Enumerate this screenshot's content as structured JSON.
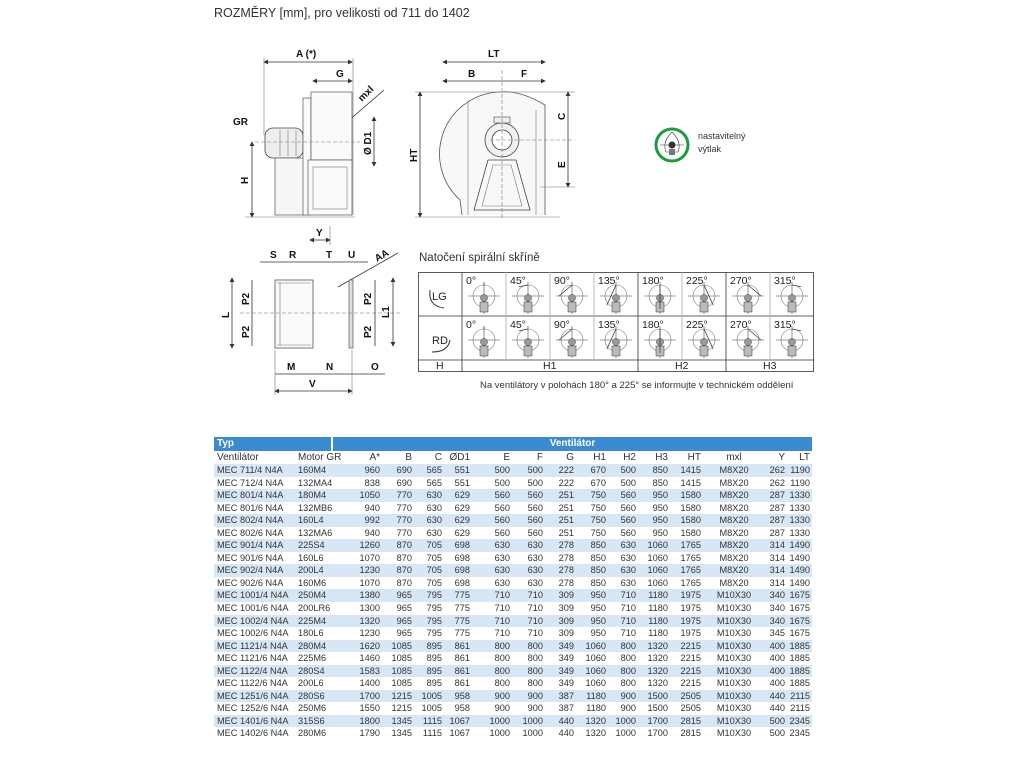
{
  "title": "ROZMĚRY [mm], pro velikosti od 711 do 1402",
  "drawing_labels": {
    "a": "A (*)",
    "g": "G",
    "mxl": "mxl",
    "gr": "GR",
    "d1": "Ø D1",
    "h": "H",
    "lt": "LT",
    "b": "B",
    "f": "F",
    "ht": "HT",
    "c": "C",
    "e": "E",
    "y": "Y",
    "s": "S",
    "r": "R",
    "t": "T",
    "u": "U",
    "aa": "AA",
    "l": "L",
    "p2": "P2",
    "l1": "L1",
    "m": "M",
    "n": "N",
    "o": "O",
    "v": "V"
  },
  "adjustable_outlet": {
    "line1": "nastavitelný",
    "line2": "výtlak",
    "icon": "adjustable-outlet-icon",
    "color": "#1f9a3e"
  },
  "rotation": {
    "title": "Natočení spirální skříně",
    "rows": [
      {
        "label": "LG",
        "angles": [
          "0°",
          "45°",
          "90°",
          "135°",
          "180°",
          "225°",
          "270°",
          "315°"
        ]
      },
      {
        "label": "RD",
        "angles": [
          "0°",
          "45°",
          "90°",
          "135°",
          "180°",
          "225°",
          "270°",
          "315°"
        ]
      }
    ],
    "footer": {
      "label": "H",
      "groups": [
        "H1",
        "H2",
        "H3"
      ]
    },
    "note": "Na ventilátory v polohách 180° a 225° se informujte v technickém oddělení"
  },
  "table": {
    "group_headers": [
      "Typ",
      "Ventilátor"
    ],
    "header_color": "#3a8bd0",
    "stripe_color": "#d8e7f5",
    "columns": [
      "Ventilátor",
      "Motor GR",
      "A*",
      "B",
      "C",
      "ØD1",
      "E",
      "F",
      "G",
      "H1",
      "H2",
      "H3",
      "HT",
      "mxl",
      "Y",
      "LT"
    ],
    "rows": [
      [
        "MEC 711/4 N4A",
        "160M4",
        "960",
        "690",
        "565",
        "551",
        "500",
        "500",
        "222",
        "670",
        "500",
        "850",
        "1415",
        "M8X20",
        "262",
        "1190"
      ],
      [
        "MEC 712/4 N4A",
        "132MA4",
        "838",
        "690",
        "565",
        "551",
        "500",
        "500",
        "222",
        "670",
        "500",
        "850",
        "1415",
        "M8X20",
        "262",
        "1190"
      ],
      [
        "MEC 801/4 N4A",
        "180M4",
        "1050",
        "770",
        "630",
        "629",
        "560",
        "560",
        "251",
        "750",
        "560",
        "950",
        "1580",
        "M8X20",
        "287",
        "1330"
      ],
      [
        "MEC 801/6 N4A",
        "132MB6",
        "940",
        "770",
        "630",
        "629",
        "560",
        "560",
        "251",
        "750",
        "560",
        "950",
        "1580",
        "M8X20",
        "287",
        "1330"
      ],
      [
        "MEC 802/4 N4A",
        "160L4",
        "992",
        "770",
        "630",
        "629",
        "560",
        "560",
        "251",
        "750",
        "560",
        "950",
        "1580",
        "M8X20",
        "287",
        "1330"
      ],
      [
        "MEC 802/6 N4A",
        "132MA6",
        "940",
        "770",
        "630",
        "629",
        "560",
        "560",
        "251",
        "750",
        "560",
        "950",
        "1580",
        "M8X20",
        "287",
        "1330"
      ],
      [
        "MEC 901/4 N4A",
        "225S4",
        "1260",
        "870",
        "705",
        "698",
        "630",
        "630",
        "278",
        "850",
        "630",
        "1060",
        "1765",
        "M8X20",
        "314",
        "1490"
      ],
      [
        "MEC 901/6 N4A",
        "160L6",
        "1070",
        "870",
        "705",
        "698",
        "630",
        "630",
        "278",
        "850",
        "630",
        "1060",
        "1765",
        "M8X20",
        "314",
        "1490"
      ],
      [
        "MEC 902/4 N4A",
        "200L4",
        "1230",
        "870",
        "705",
        "698",
        "630",
        "630",
        "278",
        "850",
        "630",
        "1060",
        "1765",
        "M8X20",
        "314",
        "1490"
      ],
      [
        "MEC 902/6 N4A",
        "160M6",
        "1070",
        "870",
        "705",
        "698",
        "630",
        "630",
        "278",
        "850",
        "630",
        "1060",
        "1765",
        "M8X20",
        "314",
        "1490"
      ],
      [
        "MEC 1001/4 N4A",
        "250M4",
        "1380",
        "965",
        "795",
        "775",
        "710",
        "710",
        "309",
        "950",
        "710",
        "1180",
        "1975",
        "M10X30",
        "340",
        "1675"
      ],
      [
        "MEC 1001/6 N4A",
        "200LR6",
        "1300",
        "965",
        "795",
        "775",
        "710",
        "710",
        "309",
        "950",
        "710",
        "1180",
        "1975",
        "M10X30",
        "340",
        "1675"
      ],
      [
        "MEC 1002/4 N4A",
        "225M4",
        "1320",
        "965",
        "795",
        "775",
        "710",
        "710",
        "309",
        "950",
        "710",
        "1180",
        "1975",
        "M10X30",
        "340",
        "1675"
      ],
      [
        "MEC 1002/6 N4A",
        "180L6",
        "1230",
        "965",
        "795",
        "775",
        "710",
        "710",
        "309",
        "950",
        "710",
        "1180",
        "1975",
        "M10X30",
        "345",
        "1675"
      ],
      [
        "MEC 1121/4 N4A",
        "280M4",
        "1620",
        "1085",
        "895",
        "861",
        "800",
        "800",
        "349",
        "1060",
        "800",
        "1320",
        "2215",
        "M10X30",
        "400",
        "1885"
      ],
      [
        "MEC 1121/6 N4A",
        "225M6",
        "1460",
        "1085",
        "895",
        "861",
        "800",
        "800",
        "349",
        "1060",
        "800",
        "1320",
        "2215",
        "M10X30",
        "400",
        "1885"
      ],
      [
        "MEC 1122/4 N4A",
        "280S4",
        "1583",
        "1085",
        "895",
        "861",
        "800",
        "800",
        "349",
        "1060",
        "800",
        "1320",
        "2215",
        "M10X30",
        "400",
        "1885"
      ],
      [
        "MEC 1122/6 N4A",
        "200L6",
        "1400",
        "1085",
        "895",
        "861",
        "800",
        "800",
        "349",
        "1060",
        "800",
        "1320",
        "2215",
        "M10X30",
        "400",
        "1885"
      ],
      [
        "MEC 1251/6 N4A",
        "280S6",
        "1700",
        "1215",
        "1005",
        "958",
        "900",
        "900",
        "387",
        "1180",
        "900",
        "1500",
        "2505",
        "M10X30",
        "440",
        "2115"
      ],
      [
        "MEC 1252/6 N4A",
        "250M6",
        "1550",
        "1215",
        "1005",
        "958",
        "900",
        "900",
        "387",
        "1180",
        "900",
        "1500",
        "2505",
        "M10X30",
        "440",
        "2115"
      ],
      [
        "MEC 1401/6 N4A",
        "315S6",
        "1800",
        "1345",
        "1115",
        "1067",
        "1000",
        "1000",
        "440",
        "1320",
        "1000",
        "1700",
        "2815",
        "M10X30",
        "500",
        "2345"
      ],
      [
        "MEC 1402/6 N4A",
        "280M6",
        "1790",
        "1345",
        "1115",
        "1067",
        "1000",
        "1000",
        "440",
        "1320",
        "1000",
        "1700",
        "2815",
        "M10X30",
        "500",
        "2345"
      ]
    ]
  }
}
